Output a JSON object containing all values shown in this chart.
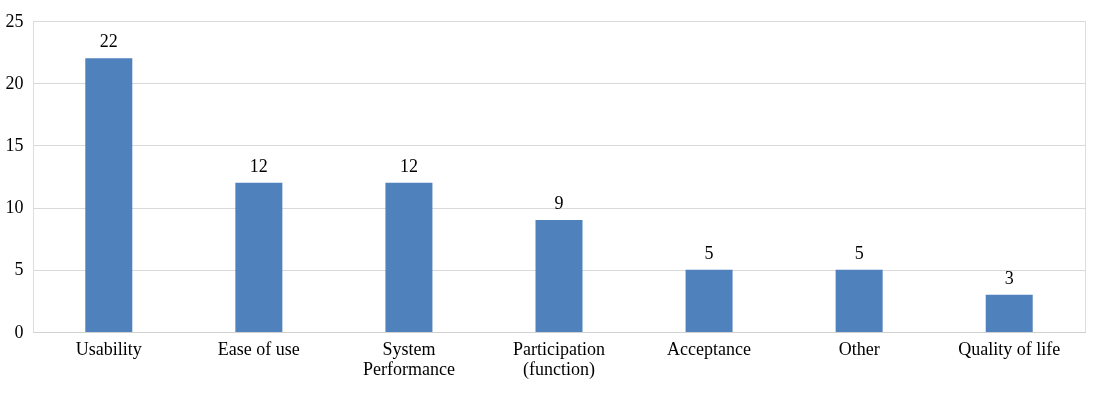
{
  "chart_data": {
    "type": "bar",
    "categories": [
      "Usability",
      "Ease of use",
      "System Performance",
      "Participation (function)",
      "Acceptance",
      "Other",
      "Quality of life"
    ],
    "values": [
      22,
      12,
      12,
      9,
      5,
      5,
      3
    ],
    "color": "#4f81bd",
    "ylim": [
      0,
      25
    ],
    "yticks": [
      0,
      5,
      10,
      15,
      20,
      25
    ],
    "grid": "y",
    "data_labels": true
  }
}
